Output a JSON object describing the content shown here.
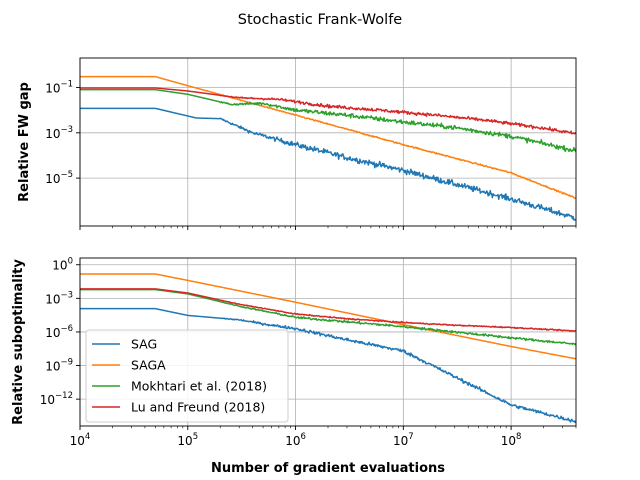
{
  "figure": {
    "title": "Stochastic Frank-Wolfe"
  },
  "colors": {
    "SAG": "#1f77b4",
    "SAGA": "#ff7f0e",
    "Mokhtari": "#2ca02c",
    "Lu": "#d62728",
    "grid": "#b0b0b0"
  },
  "chart_data": [
    {
      "type": "line",
      "ylabel": "Relative FW gap",
      "xlabel": "",
      "xscale": "log",
      "yscale": "log",
      "xlim": [
        10000,
        400000000
      ],
      "ylim": [
        7.7e-08,
        2.0
      ],
      "xticks": [
        {
          "value": 10000,
          "label": "",
          "exp": ""
        },
        {
          "value": 100000,
          "label": "",
          "exp": ""
        },
        {
          "value": 1000000,
          "label": "",
          "exp": ""
        },
        {
          "value": 10000000,
          "label": "",
          "exp": ""
        },
        {
          "value": 100000000,
          "label": "",
          "exp": ""
        }
      ],
      "yticks": [
        {
          "value": 0.1,
          "label": "10",
          "exp": "−1"
        },
        {
          "value": 0.001,
          "label": "10",
          "exp": "−3"
        },
        {
          "value": 1e-05,
          "label": "10",
          "exp": "−5"
        }
      ],
      "grid": true,
      "series": [
        {
          "name": "SAG",
          "color": "#1f77b4",
          "noise": 0.13,
          "points": [
            [
              10000,
              0.012
            ],
            [
              50000,
              0.012
            ],
            [
              120000,
              0.0045
            ],
            [
              200000,
              0.0042
            ],
            [
              400000,
              0.001
            ],
            [
              1000000,
              0.0003
            ],
            [
              3000000,
              8e-05
            ],
            [
              10000000,
              2.2e-05
            ],
            [
              30000000,
              5.5e-06
            ],
            [
              100000000,
              1.2e-06
            ],
            [
              400000000,
              1.7e-07
            ]
          ]
        },
        {
          "name": "SAGA",
          "color": "#ff7f0e",
          "noise": 0.03,
          "points": [
            [
              10000,
              0.3
            ],
            [
              50000,
              0.3
            ],
            [
              100000,
              0.12
            ],
            [
              1000000,
              0.006
            ],
            [
              10000000,
              0.0003
            ],
            [
              100000000,
              1.7e-05
            ],
            [
              400000000,
              1.3e-06
            ]
          ]
        },
        {
          "name": "Mokhtari et al. (2018)",
          "color": "#2ca02c",
          "noise": 0.1,
          "points": [
            [
              10000,
              0.08
            ],
            [
              50000,
              0.08
            ],
            [
              100000,
              0.05
            ],
            [
              250000,
              0.018
            ],
            [
              500000,
              0.02
            ],
            [
              1000000,
              0.01
            ],
            [
              3000000,
              0.006
            ],
            [
              10000000,
              0.003
            ],
            [
              30000000,
              0.0017
            ],
            [
              100000000,
              0.0007
            ],
            [
              400000000,
              0.00016
            ]
          ]
        },
        {
          "name": "Lu and Freund (2018)",
          "color": "#d62728",
          "noise": 0.07,
          "points": [
            [
              10000,
              0.095
            ],
            [
              50000,
              0.095
            ],
            [
              100000,
              0.07
            ],
            [
              300000,
              0.035
            ],
            [
              700000,
              0.03
            ],
            [
              2000000,
              0.015
            ],
            [
              6000000,
              0.01
            ],
            [
              20000000,
              0.006
            ],
            [
              60000000,
              0.0035
            ],
            [
              200000000,
              0.0016
            ],
            [
              400000000,
              0.0009
            ]
          ]
        }
      ]
    },
    {
      "type": "line",
      "ylabel": "Relative suboptimality",
      "xlabel": "Number of gradient evaluations",
      "xscale": "log",
      "yscale": "log",
      "xlim": [
        10000,
        400000000
      ],
      "ylim": [
        4e-15,
        4.0
      ],
      "xticks": [
        {
          "value": 10000,
          "label": "10",
          "exp": "4"
        },
        {
          "value": 100000,
          "label": "10",
          "exp": "5"
        },
        {
          "value": 1000000,
          "label": "10",
          "exp": "6"
        },
        {
          "value": 10000000,
          "label": "10",
          "exp": "7"
        },
        {
          "value": 100000000,
          "label": "10",
          "exp": "8"
        }
      ],
      "yticks": [
        {
          "value": 1,
          "label": "10",
          "exp": "0"
        },
        {
          "value": 0.001,
          "label": "10",
          "exp": "−3"
        },
        {
          "value": 1e-06,
          "label": "10",
          "exp": "−6"
        },
        {
          "value": 1e-09,
          "label": "10",
          "exp": "−9"
        },
        {
          "value": 1e-12,
          "label": "10",
          "exp": "−12"
        }
      ],
      "grid": true,
      "legend": {
        "placement": "lower left",
        "entries": [
          "SAG",
          "SAGA",
          "Mokhtari et al. (2018)",
          "Lu and Freund (2018)"
        ]
      },
      "series": [
        {
          "name": "SAG",
          "color": "#1f77b4",
          "noise": 0.15,
          "points": [
            [
              10000,
              0.00012
            ],
            [
              50000,
              0.00012
            ],
            [
              100000,
              3e-05
            ],
            [
              300000,
              1.2e-05
            ],
            [
              600000,
              4e-06
            ],
            [
              1000000,
              2e-06
            ],
            [
              3000000,
              2e-07
            ],
            [
              10000000,
              2e-08
            ],
            [
              100000000,
              3e-13
            ],
            [
              400000000,
              1e-14
            ]
          ]
        },
        {
          "name": "SAGA",
          "color": "#ff7f0e",
          "noise": 0.0,
          "points": [
            [
              10000,
              0.15
            ],
            [
              50000,
              0.15
            ],
            [
              100000,
              0.04
            ],
            [
              1000000,
              0.00045
            ],
            [
              10000000,
              4.5e-06
            ],
            [
              100000000,
              5e-08
            ],
            [
              400000000,
              4e-09
            ]
          ]
        },
        {
          "name": "Mokhtari et al. (2018)",
          "color": "#2ca02c",
          "noise": 0.1,
          "points": [
            [
              10000,
              0.006
            ],
            [
              50000,
              0.006
            ],
            [
              100000,
              0.0025
            ],
            [
              300000,
              0.0002
            ],
            [
              1000000,
              2e-05
            ],
            [
              3000000,
              8e-06
            ],
            [
              10000000,
              3e-06
            ],
            [
              100000000,
              3e-07
            ],
            [
              400000000,
              8e-08
            ]
          ]
        },
        {
          "name": "Lu and Freund (2018)",
          "color": "#d62728",
          "noise": 0.05,
          "points": [
            [
              10000,
              0.007
            ],
            [
              50000,
              0.007
            ],
            [
              100000,
              0.003
            ],
            [
              300000,
              0.0003
            ],
            [
              1000000,
              4e-05
            ],
            [
              3000000,
              1.5e-05
            ],
            [
              10000000,
              7e-06
            ],
            [
              30000000,
              4e-06
            ],
            [
              100000000,
              2.5e-06
            ],
            [
              400000000,
              1.2e-06
            ]
          ]
        }
      ]
    }
  ]
}
